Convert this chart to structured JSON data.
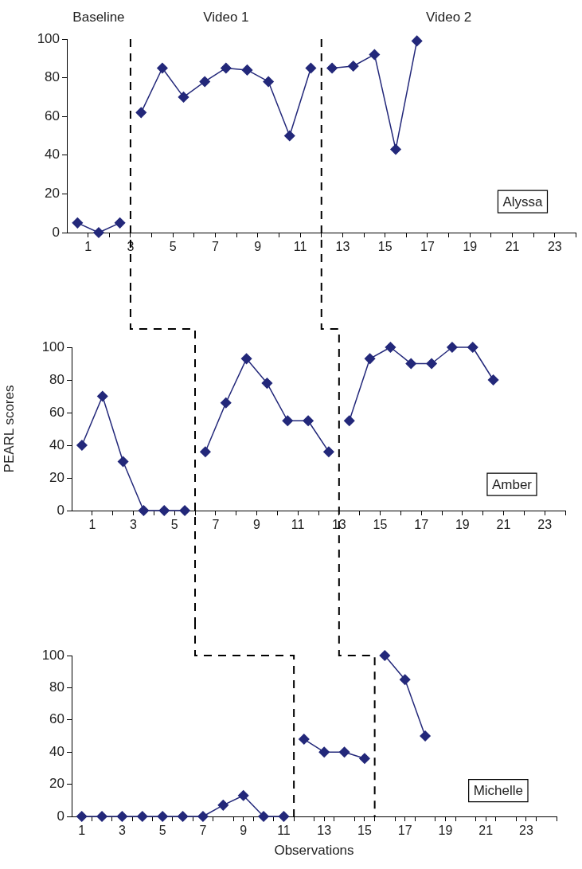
{
  "chart_data": [
    {
      "type": "line",
      "marker": "diamond",
      "line_style": "solid",
      "grid": false,
      "legend": false,
      "xlim": [
        0,
        24
      ],
      "xticks": [
        {
          "value": 1,
          "label": "1"
        },
        {
          "value": 2,
          "label": null
        },
        {
          "value": 3,
          "label": "3"
        },
        {
          "value": 4,
          "label": null
        },
        {
          "value": 5,
          "label": "5"
        },
        {
          "value": 6,
          "label": null
        },
        {
          "value": 7,
          "label": "7"
        },
        {
          "value": 8,
          "label": null
        },
        {
          "value": 9,
          "label": "9"
        },
        {
          "value": 10,
          "label": null
        },
        {
          "value": 11,
          "label": "11"
        },
        {
          "value": 12,
          "label": null
        },
        {
          "value": 13,
          "label": "13"
        },
        {
          "value": 14,
          "label": null
        },
        {
          "value": 15,
          "label": "15"
        },
        {
          "value": 16,
          "label": null
        },
        {
          "value": 17,
          "label": "17"
        },
        {
          "value": 18,
          "label": null
        },
        {
          "value": 19,
          "label": "19"
        },
        {
          "value": 20,
          "label": null
        },
        {
          "value": 21,
          "label": "21"
        },
        {
          "value": 22,
          "label": null
        },
        {
          "value": 23,
          "label": "23"
        },
        {
          "value": 24,
          "label": null
        }
      ],
      "ylim": [
        0,
        100
      ],
      "yticks": [
        0,
        20,
        40,
        60,
        80,
        100
      ],
      "series": [
        {
          "color": "#23287a",
          "x": [
            0.5,
            1.5,
            2.5
          ],
          "values": [
            5,
            0,
            5
          ]
        },
        {
          "color": "#23287a",
          "x": [
            3.5,
            4.5,
            5.5,
            6.5,
            7.5,
            8.5,
            9.5,
            10.5,
            11.5
          ],
          "values": [
            62,
            85,
            70,
            78,
            85,
            84,
            78,
            50,
            85
          ]
        },
        {
          "color": "#23287a",
          "x": [
            12.5,
            13.5,
            14.5,
            15.5,
            16.5
          ],
          "values": [
            85,
            86,
            92,
            43,
            99
          ]
        }
      ],
      "ref_lines": [
        {
          "axis": "x",
          "value": 3,
          "color": "#000000",
          "line_style": "dashed"
        },
        {
          "axis": "x",
          "value": 12,
          "color": "#000000",
          "line_style": "dashed"
        }
      ],
      "annotations": [
        "Baseline",
        "Video 1",
        "Video 2",
        "Alyssa"
      ]
    },
    {
      "type": "line",
      "marker": "diamond",
      "line_style": "solid",
      "grid": false,
      "legend": false,
      "ylabel": "PEARL scores",
      "xlim": [
        0,
        24
      ],
      "xticks": [
        {
          "value": 1,
          "label": "1"
        },
        {
          "value": 2,
          "label": null
        },
        {
          "value": 3,
          "label": "3"
        },
        {
          "value": 4,
          "label": null
        },
        {
          "value": 5,
          "label": "5"
        },
        {
          "value": 6,
          "label": null
        },
        {
          "value": 7,
          "label": "7"
        },
        {
          "value": 8,
          "label": null
        },
        {
          "value": 9,
          "label": "9"
        },
        {
          "value": 10,
          "label": null
        },
        {
          "value": 11,
          "label": "11"
        },
        {
          "value": 12,
          "label": null
        },
        {
          "value": 13,
          "label": "13"
        },
        {
          "value": 14,
          "label": null
        },
        {
          "value": 15,
          "label": "15"
        },
        {
          "value": 16,
          "label": null
        },
        {
          "value": 17,
          "label": "17"
        },
        {
          "value": 18,
          "label": null
        },
        {
          "value": 19,
          "label": "19"
        },
        {
          "value": 20,
          "label": null
        },
        {
          "value": 21,
          "label": "21"
        },
        {
          "value": 22,
          "label": null
        },
        {
          "value": 23,
          "label": "23"
        },
        {
          "value": 24,
          "label": null
        }
      ],
      "ylim": [
        0,
        100
      ],
      "yticks": [
        0,
        20,
        40,
        60,
        80,
        100
      ],
      "series": [
        {
          "color": "#23287a",
          "x": [
            0.5,
            1.5,
            2.5,
            3.5,
            4.5,
            5.5
          ],
          "values": [
            40,
            70,
            30,
            0,
            0,
            0
          ]
        },
        {
          "color": "#23287a",
          "x": [
            6.5,
            7.5,
            8.5,
            9.5,
            10.5,
            11.5,
            12.5
          ],
          "values": [
            36,
            66,
            93,
            78,
            55,
            55,
            36
          ]
        },
        {
          "color": "#23287a",
          "x": [
            13.5,
            14.5,
            15.5,
            16.5,
            17.5,
            18.5,
            19.5,
            20.5
          ],
          "values": [
            55,
            93,
            100,
            90,
            90,
            100,
            100,
            80
          ]
        }
      ],
      "ref_lines": [
        {
          "axis": "x",
          "value": 6,
          "color": "#000000",
          "line_style": "dashed"
        },
        {
          "axis": "x",
          "value": 13,
          "color": "#000000",
          "line_style": "dashed"
        }
      ],
      "annotations": [
        "Amber"
      ]
    },
    {
      "type": "line",
      "marker": "diamond",
      "line_style": "solid",
      "grid": false,
      "legend": false,
      "xlabel": "Observations",
      "xlim": [
        0.5,
        24.5
      ],
      "xticks": [
        1,
        {
          "value": 1.5,
          "label": null
        },
        {
          "value": 2.5,
          "label": null
        },
        3,
        {
          "value": 3.5,
          "label": null
        },
        {
          "value": 4.5,
          "label": null
        },
        5,
        {
          "value": 5.5,
          "label": null
        },
        {
          "value": 6.5,
          "label": null
        },
        7,
        {
          "value": 7.5,
          "label": null
        },
        {
          "value": 8.5,
          "label": null
        },
        9,
        {
          "value": 9.5,
          "label": null
        },
        {
          "value": 10.5,
          "label": null
        },
        11,
        {
          "value": 11.5,
          "label": null
        },
        {
          "value": 12.5,
          "label": null
        },
        13,
        {
          "value": 13.5,
          "label": null
        },
        {
          "value": 14.5,
          "label": null
        },
        15,
        {
          "value": 15.5,
          "label": null
        },
        {
          "value": 16.5,
          "label": null
        },
        17,
        {
          "value": 17.5,
          "label": null
        },
        {
          "value": 18.5,
          "label": null
        },
        19,
        {
          "value": 19.5,
          "label": null
        },
        {
          "value": 20.5,
          "label": null
        },
        21,
        {
          "value": 21.5,
          "label": null
        },
        {
          "value": 22.5,
          "label": null
        },
        23,
        {
          "value": 23.5,
          "label": null
        },
        {
          "value": 24.5,
          "label": null
        }
      ],
      "ylim": [
        0,
        100
      ],
      "yticks": [
        0,
        20,
        40,
        60,
        80,
        100
      ],
      "series": [
        {
          "color": "#23287a",
          "x": [
            1,
            2,
            3,
            4,
            5,
            6,
            7,
            8,
            9,
            10,
            11
          ],
          "values": [
            0,
            0,
            0,
            0,
            0,
            0,
            0,
            7,
            13,
            0,
            0
          ]
        },
        {
          "color": "#23287a",
          "x": [
            12,
            13,
            14,
            15
          ],
          "values": [
            48,
            40,
            40,
            36
          ]
        },
        {
          "color": "#23287a",
          "x": [
            16,
            17,
            18
          ],
          "values": [
            100,
            85,
            50
          ]
        }
      ],
      "ref_lines": [
        {
          "axis": "x",
          "value": 11.5,
          "color": "#000000",
          "line_style": "dashed"
        },
        {
          "axis": "x",
          "value": 15.5,
          "color": "#000000",
          "line_style": "dashed"
        }
      ],
      "annotations": [
        "Michelle"
      ]
    }
  ]
}
